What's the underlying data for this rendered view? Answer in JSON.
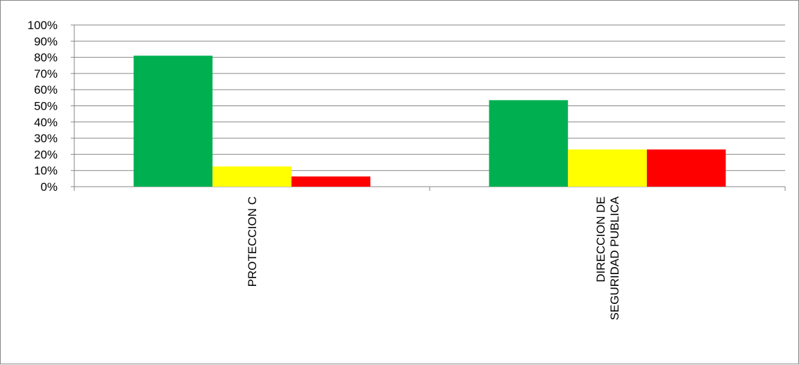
{
  "chart_data": {
    "type": "bar",
    "title": "",
    "xlabel": "",
    "ylabel": "",
    "ylim": [
      0,
      1
    ],
    "y_ticks": [
      "0%",
      "10%",
      "20%",
      "30%",
      "40%",
      "50%",
      "60%",
      "70%",
      "80%",
      "90%",
      "100%"
    ],
    "categories": [
      [
        "PROTECCION C"
      ],
      [
        "DIRECCION DE",
        "SEGURIDAD PUBLICA"
      ]
    ],
    "series": [
      {
        "color": "#00b050",
        "values": [
          0.81,
          0.535
        ]
      },
      {
        "color": "#ffff00",
        "values": [
          0.125,
          0.23
        ]
      },
      {
        "color": "#ff0000",
        "values": [
          0.063,
          0.23
        ]
      }
    ],
    "grid": true,
    "legend": "none"
  }
}
